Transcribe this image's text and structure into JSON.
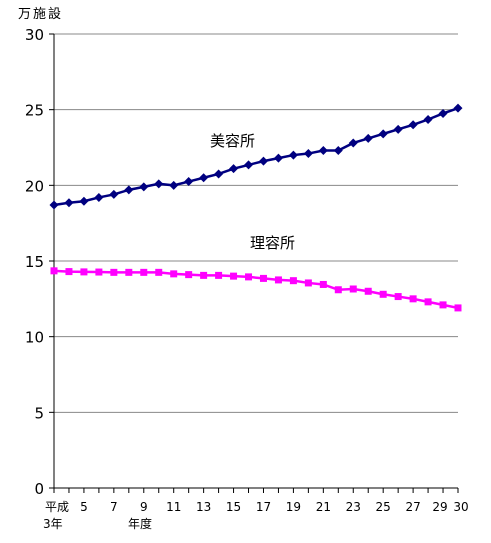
{
  "chart_data": {
    "type": "line",
    "unit_label": "万施設",
    "y_ticks": [
      "0",
      "5",
      "10",
      "15",
      "20",
      "25",
      "30"
    ],
    "ylim": [
      0,
      30
    ],
    "grid": "horizontal",
    "x_tick_labels": [
      "平成",
      "5",
      "7",
      "9",
      "11",
      "13",
      "15",
      "17",
      "19",
      "21",
      "23",
      "25",
      "27",
      "29",
      "30"
    ],
    "x_tick_label_first_line2": "3年",
    "x_note": "年度",
    "x": [
      3,
      4,
      5,
      6,
      7,
      8,
      9,
      10,
      11,
      12,
      13,
      14,
      15,
      16,
      17,
      18,
      19,
      20,
      21,
      22,
      23,
      24,
      25,
      26,
      27,
      28,
      29,
      30
    ],
    "xlim": [
      3,
      30
    ],
    "series": [
      {
        "name": "美容所",
        "color": "#000080",
        "marker": "diamond",
        "values": [
          18.7,
          18.85,
          18.95,
          19.2,
          19.4,
          19.7,
          19.9,
          20.1,
          20.0,
          20.25,
          20.5,
          20.75,
          21.1,
          21.35,
          21.6,
          21.8,
          22.0,
          22.1,
          22.3,
          22.3,
          22.8,
          23.1,
          23.4,
          23.7,
          24.0,
          24.35,
          24.75,
          25.1
        ]
      },
      {
        "name": "理容所",
        "color": "#ff00ff",
        "marker": "square",
        "values": [
          14.35,
          14.3,
          14.28,
          14.27,
          14.25,
          14.25,
          14.25,
          14.25,
          14.15,
          14.1,
          14.05,
          14.05,
          14.0,
          13.95,
          13.85,
          13.75,
          13.7,
          13.55,
          13.45,
          13.1,
          13.15,
          13.0,
          12.8,
          12.65,
          12.5,
          12.3,
          12.1,
          11.9
        ]
      }
    ]
  }
}
